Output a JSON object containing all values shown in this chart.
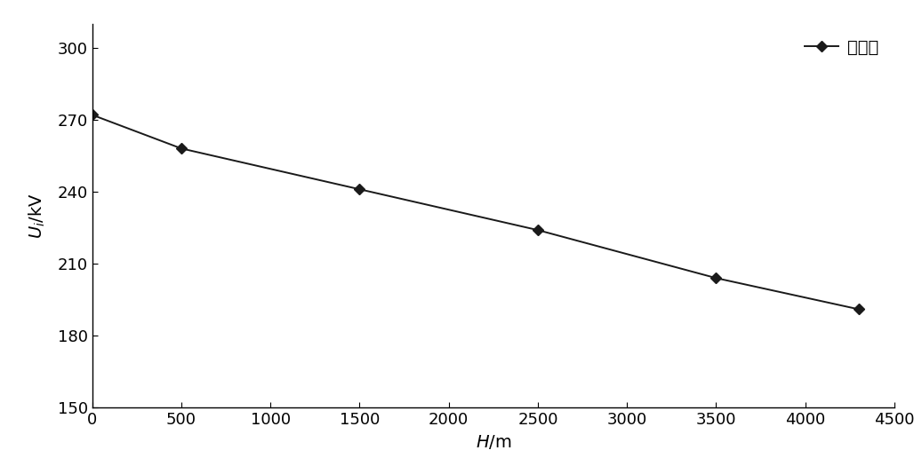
{
  "x": [
    0,
    500,
    1500,
    2500,
    3500,
    4300
  ],
  "y": [
    272,
    258,
    241,
    224,
    204,
    191
  ],
  "line_color": "#1a1a1a",
  "marker": "D",
  "marker_color": "#1a1a1a",
  "marker_size": 6,
  "linewidth": 1.4,
  "xlabel": "H/m",
  "ylabel_italic": "U",
  "ylabel_sub": "i",
  "ylabel_rest": "/kV",
  "xlim": [
    0,
    4500
  ],
  "ylim": [
    150,
    310
  ],
  "xticks": [
    0,
    500,
    1000,
    1500,
    2000,
    2500,
    3000,
    3500,
    4000,
    4500
  ],
  "yticks": [
    150,
    180,
    210,
    240,
    270,
    300
  ],
  "legend_label": "屏蔽环",
  "background_color": "#ffffff",
  "label_fontsize": 14,
  "tick_fontsize": 13,
  "legend_fontsize": 14
}
